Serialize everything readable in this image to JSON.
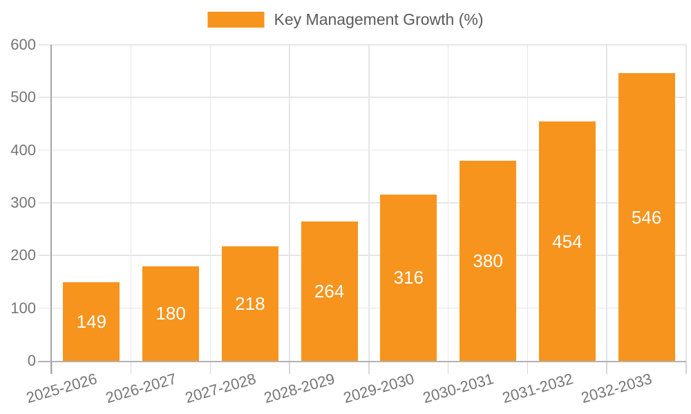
{
  "chart_data": {
    "type": "bar",
    "title": "Key Management Growth (%)",
    "categories": [
      "2025-2026",
      "2026-2027",
      "2027-2028",
      "2028-2029",
      "2029-2030",
      "2030-2031",
      "2031-2032",
      "2032-2033"
    ],
    "values": [
      149,
      180,
      218,
      264,
      316,
      380,
      454,
      546
    ],
    "series": [
      {
        "name": "Key Management Growth (%)",
        "values": [
          149,
          180,
          218,
          264,
          316,
          380,
          454,
          546
        ]
      }
    ],
    "xlabel": "",
    "ylabel": "",
    "ylim": [
      0,
      600
    ],
    "yticks": [
      0,
      100,
      200,
      300,
      400,
      500,
      600
    ],
    "grid": true,
    "legend_position": "top",
    "value_labels": "inside-center"
  },
  "colors": {
    "bar": "#F7941D",
    "value_label": "#FFFFFF",
    "grid_line": "#E6E6E6",
    "tick_mark": "#D6D6D6",
    "axis_line_y": "#A6A6A6",
    "axis_line_x": "#B0B0B0",
    "axis_text": "#757575",
    "legend_text": "#5A5A5A"
  }
}
